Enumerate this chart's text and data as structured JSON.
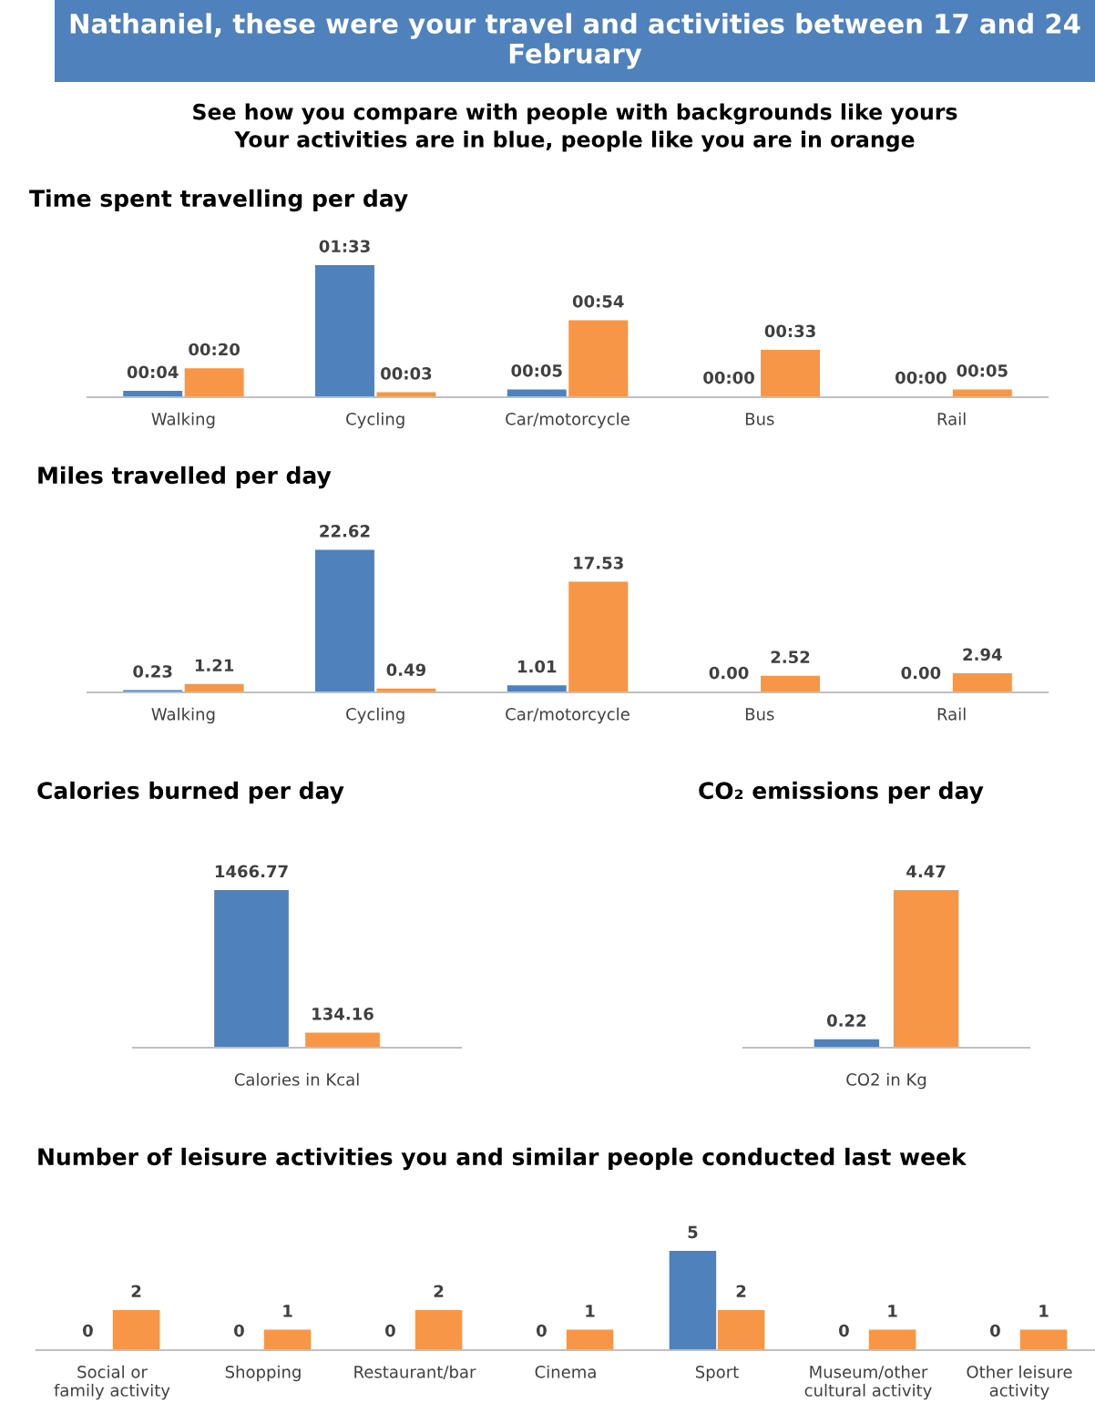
{
  "chart_data": [
    {
      "type": "other",
      "title": "Nathaniel, these were your travel and activities between 17 and 24 February",
      "subtitle": "See how you compare with people with backgrounds like yours\nYour activities are in blue, people like you are in orange"
    },
    {
      "type": "bar",
      "title": "Time spent travelling per day",
      "categories": [
        "Walking",
        "Cycling",
        "Car/motorcycle",
        "Bus",
        "Rail"
      ],
      "series": [
        {
          "color": "#4f81bd",
          "values": [
            4,
            93,
            5,
            0,
            0
          ],
          "value_labels": [
            "00:04",
            "01:33",
            "00:05",
            "00:00",
            "00:00"
          ]
        },
        {
          "color": "#f79646",
          "values": [
            20,
            3,
            54,
            33,
            5
          ],
          "value_labels": [
            "00:20",
            "00:03",
            "00:54",
            "00:33",
            "00:05"
          ]
        }
      ]
    },
    {
      "type": "bar",
      "title": "Miles travelled per day",
      "categories": [
        "Walking",
        "Cycling",
        "Car/motorcycle",
        "Bus",
        "Rail"
      ],
      "series": [
        {
          "color": "#4f81bd",
          "values": [
            0.23,
            22.62,
            1.01,
            0,
            0
          ],
          "value_labels": [
            "0.23",
            "22.62",
            "1.01",
            "0.00",
            "0.00"
          ]
        },
        {
          "color": "#f79646",
          "values": [
            1.21,
            0.49,
            17.53,
            2.52,
            2.94
          ],
          "value_labels": [
            "1.21",
            "0.49",
            "17.53",
            "2.52",
            "2.94"
          ]
        }
      ]
    },
    {
      "type": "bar",
      "title": "Calories burned per day",
      "xlabel": "Calories in Kcal",
      "categories": [
        null,
        null
      ],
      "data_labels": true,
      "values": [
        1466.77,
        134.16
      ],
      "colors": [
        "#4f81bd",
        "#f79646"
      ]
    },
    {
      "type": "bar",
      "title": "CO₂ emissions per day",
      "xlabel": "CO2 in Kg",
      "categories": [
        null,
        null
      ],
      "data_labels": true,
      "values": [
        0.22,
        4.47
      ],
      "colors": [
        "#4f81bd",
        "#f79646"
      ]
    },
    {
      "type": "bar",
      "title": "Number of leisure activities you and similar people conducted last week",
      "categories": [
        "Social or family activity",
        "Shopping",
        "Restaurant/bar",
        "Cinema",
        "Sport",
        "Museum/other cultural activity",
        "Other leisure activity"
      ],
      "data_labels": true,
      "series": [
        {
          "color": "#4f81bd",
          "values": [
            0,
            0,
            0,
            0,
            5,
            0,
            0
          ]
        },
        {
          "color": "#f79646",
          "values": [
            2,
            1,
            2,
            1,
            2,
            1,
            1
          ]
        }
      ]
    }
  ]
}
